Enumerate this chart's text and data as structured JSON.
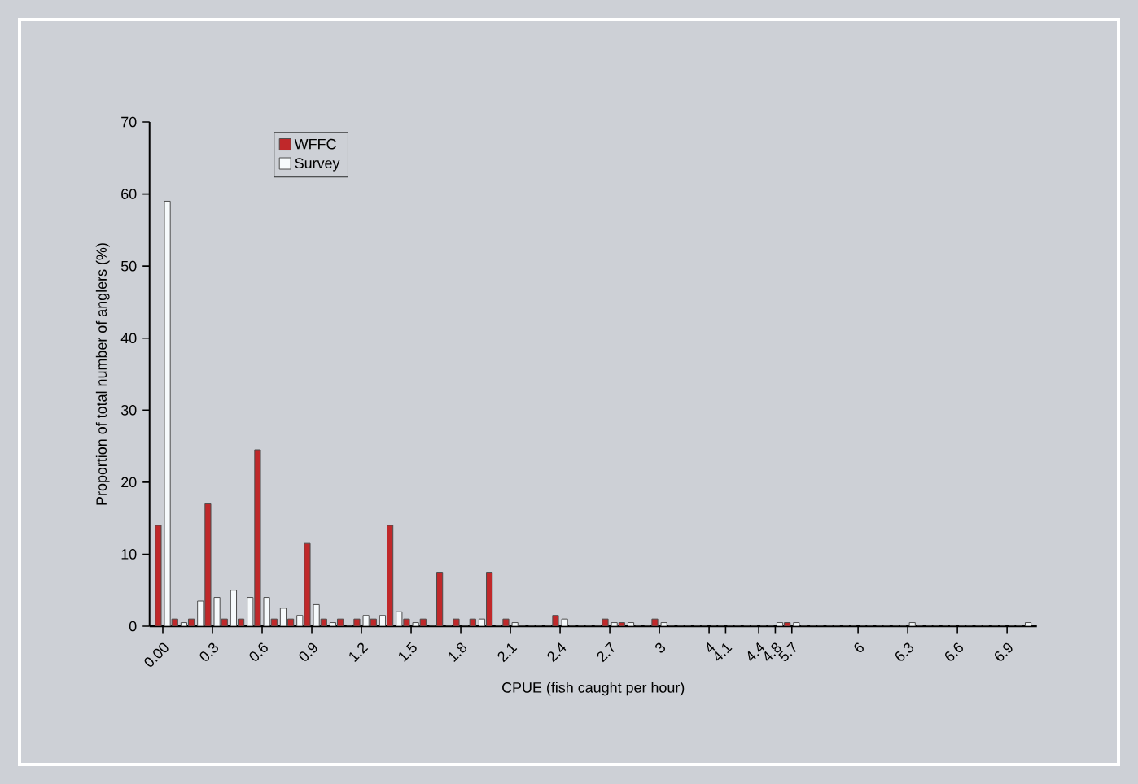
{
  "chart_data": {
    "type": "bar",
    "xlabel": "CPUE (fish caught per hour)",
    "ylabel": "Proportion of total number of anglers (%)",
    "categories": [
      "0.00",
      null,
      null,
      "0.3",
      null,
      null,
      "0.6",
      null,
      null,
      "0.9",
      null,
      null,
      "1.2",
      null,
      null,
      "1.5",
      null,
      null,
      "1.8",
      null,
      null,
      "2.1",
      null,
      null,
      "2.4",
      null,
      null,
      "2.7",
      null,
      null,
      "3",
      null,
      null,
      "4",
      "4.1",
      null,
      "4.4",
      "4.8",
      "5.7",
      null,
      null,
      null,
      "6",
      null,
      null,
      "6.3",
      null,
      null,
      "6.6",
      null,
      null,
      "6.9",
      null
    ],
    "series": [
      {
        "name": "WFFC",
        "color": "#c0282a",
        "values": [
          14,
          1,
          1,
          17,
          1,
          1,
          24.5,
          1,
          1,
          11.5,
          1,
          1,
          1,
          1,
          14,
          1,
          1,
          7.5,
          1,
          1,
          7.5,
          1,
          0,
          0,
          1.5,
          0,
          0,
          1,
          0.5,
          0,
          1,
          0,
          0,
          0,
          0,
          0,
          0,
          0,
          0.5,
          0,
          0,
          0,
          0,
          0,
          0,
          0,
          0,
          0,
          0,
          0,
          0,
          0,
          0
        ]
      },
      {
        "name": "Survey",
        "color": "#f6fafc",
        "values": [
          59,
          0.5,
          3.5,
          4,
          5,
          4,
          4,
          2.5,
          1.5,
          3,
          0.5,
          0,
          1.5,
          1.5,
          2,
          0.5,
          0,
          0,
          0,
          1,
          0,
          0.5,
          0,
          0,
          1,
          0,
          0,
          0.5,
          0.5,
          0,
          0.5,
          0,
          0,
          0,
          0,
          0,
          0,
          0.5,
          0.5,
          0,
          0,
          0,
          0,
          0,
          0,
          0.5,
          0,
          0,
          0,
          0,
          0,
          0,
          0.5
        ]
      }
    ],
    "ylim": [
      0,
      70
    ],
    "yticks": [
      0,
      10,
      20,
      30,
      40,
      50,
      60,
      70
    ],
    "grid": false,
    "legend": "top left"
  }
}
